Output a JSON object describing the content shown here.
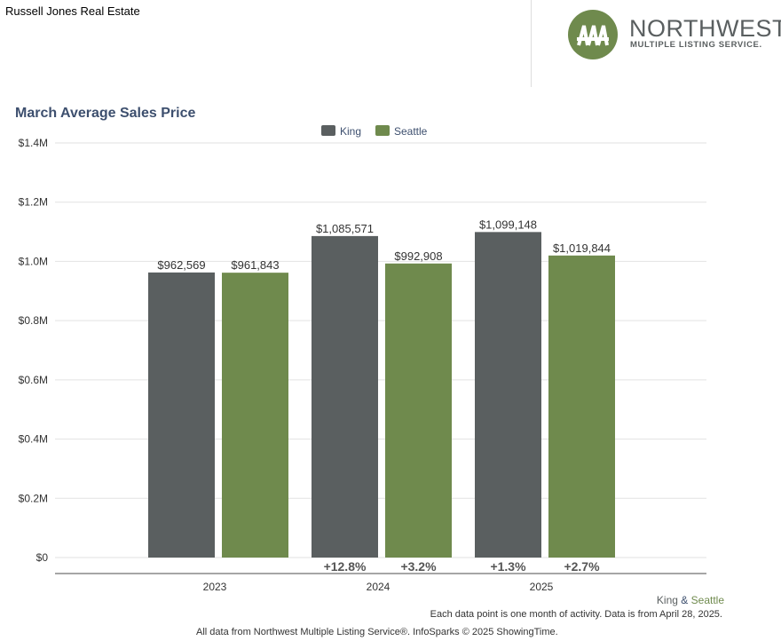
{
  "header": {
    "brand": "Russell Jones Real Estate",
    "logo_title": "NORTHWEST",
    "logo_subtitle": "MULTIPLE LISTING SERVICE."
  },
  "chart_data": {
    "type": "bar",
    "title": "March Average Sales Price",
    "categories": [
      "2023",
      "2024",
      "2025"
    ],
    "series": [
      {
        "name": "King",
        "color": "#5a5f60",
        "values": [
          962569,
          1085571,
          1099148
        ],
        "labels": [
          "$962,569",
          "$1,085,571",
          "$1,099,148"
        ],
        "changes": [
          "",
          "+12.8%",
          "+1.3%"
        ]
      },
      {
        "name": "Seattle",
        "color": "#6f8a4d",
        "values": [
          961843,
          992908,
          1019844
        ],
        "labels": [
          "$961,843",
          "$992,908",
          "$1,019,844"
        ],
        "changes": [
          "",
          "+3.2%",
          "+2.7%"
        ]
      }
    ],
    "ylim": [
      0,
      1400000
    ],
    "yticks": [
      {
        "v": 0,
        "l": "$0"
      },
      {
        "v": 200000,
        "l": "$0.2M"
      },
      {
        "v": 400000,
        "l": "$0.4M"
      },
      {
        "v": 600000,
        "l": "$0.6M"
      },
      {
        "v": 800000,
        "l": "$0.8M"
      },
      {
        "v": 1000000,
        "l": "$1.0M"
      },
      {
        "v": 1200000,
        "l": "$1.2M"
      },
      {
        "v": 1400000,
        "l": "$1.4M"
      }
    ],
    "grid": true,
    "legend": "top-center"
  },
  "footer": {
    "area_king": "King",
    "area_amp": "&",
    "area_seattle": "Seattle",
    "note": "Each data point is one month of activity. Data is from April 28, 2025.",
    "credit": "All data from Northwest Multiple Listing Service®. InfoSparks © 2025 ShowingTime."
  }
}
